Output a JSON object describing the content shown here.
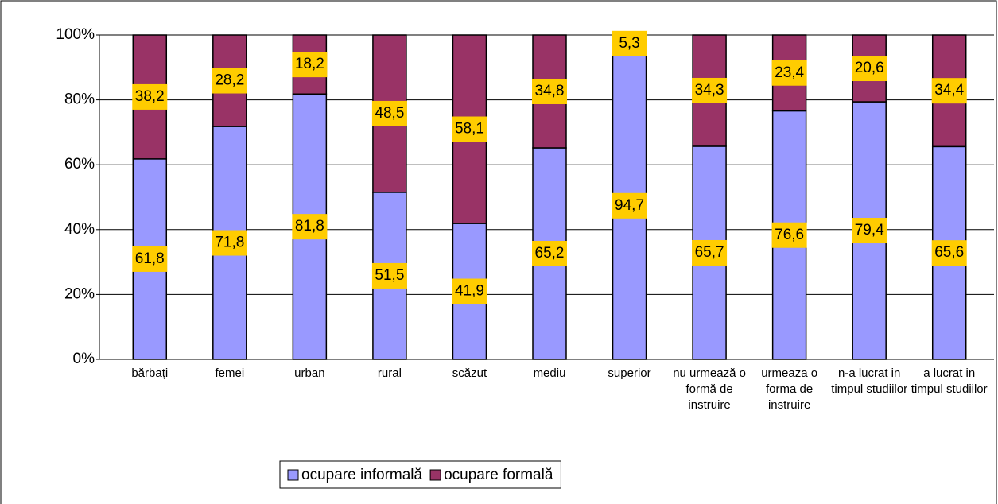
{
  "chart_data": {
    "type": "stacked_bar_100",
    "categories": [
      "bărbați",
      "femei",
      "urban",
      "rural",
      "scăzut",
      "mediu",
      "superior",
      "nu urmează o formă de instruire",
      "urmeaza o forma de instruire",
      "n-a lucrat in timpul studiilor",
      "a lucrat in timpul studiilor"
    ],
    "series": [
      {
        "name": "ocupare informală",
        "color": "#9999ff",
        "values": [
          61.8,
          71.8,
          81.8,
          51.5,
          41.9,
          65.2,
          94.7,
          65.7,
          76.6,
          79.4,
          65.6
        ],
        "value_labels": [
          "61,8",
          "71,8",
          "81,8",
          "51,5",
          "41,9",
          "65,2",
          "94,7",
          "65,7",
          "76,6",
          "79,4",
          "65,6"
        ]
      },
      {
        "name": "ocupare formală",
        "color": "#993366",
        "values": [
          38.2,
          28.2,
          18.2,
          48.5,
          58.1,
          34.8,
          5.3,
          34.3,
          23.4,
          20.6,
          34.4
        ],
        "value_labels": [
          "38,2",
          "28,2",
          "18,2",
          "48,5",
          "58,1",
          "34,8",
          "5,3",
          "34,3",
          "23,4",
          "20,6",
          "34,4"
        ]
      }
    ],
    "ylim": [
      0,
      100
    ],
    "yticks": [
      {
        "value": 0,
        "label": "0%"
      },
      {
        "value": 20,
        "label": "20%"
      },
      {
        "value": 40,
        "label": "40%"
      },
      {
        "value": 60,
        "label": "60%"
      },
      {
        "value": 80,
        "label": "80%"
      },
      {
        "value": 100,
        "label": "100%"
      }
    ],
    "grid": true,
    "legend": "bottom",
    "label_color": "#ffcc00"
  }
}
